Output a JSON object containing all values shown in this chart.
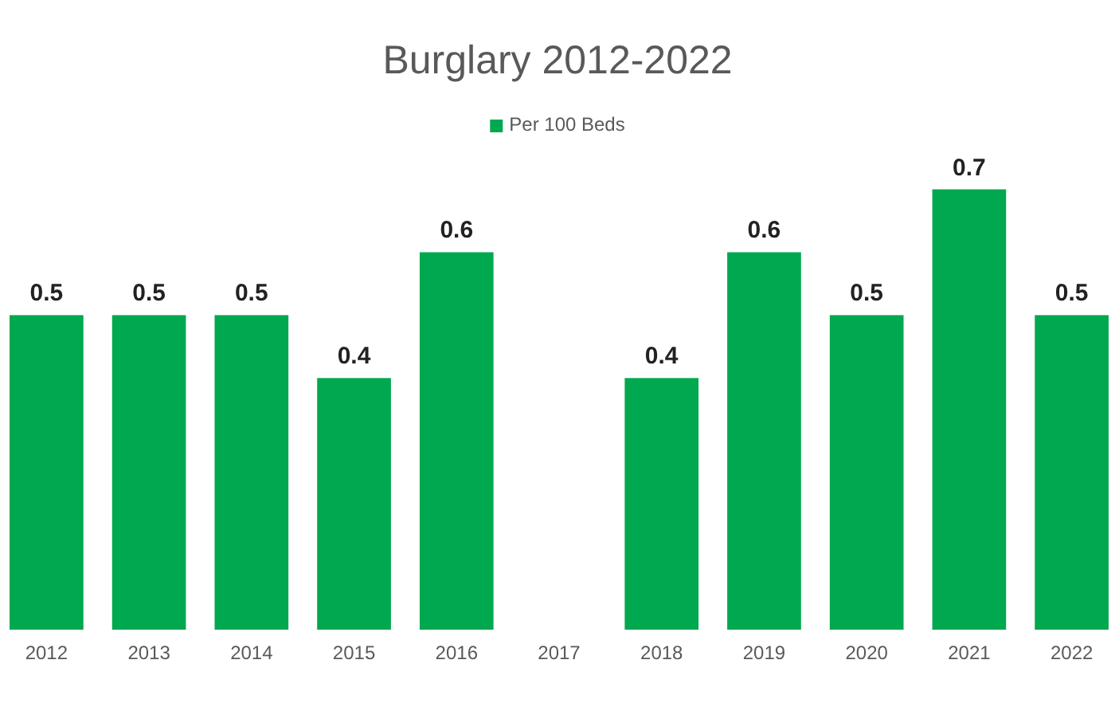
{
  "chart_data": {
    "type": "bar",
    "title": "Burglary 2012-2022",
    "categories": [
      "2012",
      "2013",
      "2014",
      "2015",
      "2016",
      "2017",
      "2018",
      "2019",
      "2020",
      "2021",
      "2022"
    ],
    "series": [
      {
        "name": "Per 100 Beds",
        "color": "#00a84f",
        "values": [
          0.5,
          0.5,
          0.5,
          0.4,
          0.6,
          null,
          0.4,
          0.6,
          0.5,
          0.7,
          0.5
        ]
      }
    ],
    "data_labels": true,
    "legend": "top",
    "grid": false
  }
}
